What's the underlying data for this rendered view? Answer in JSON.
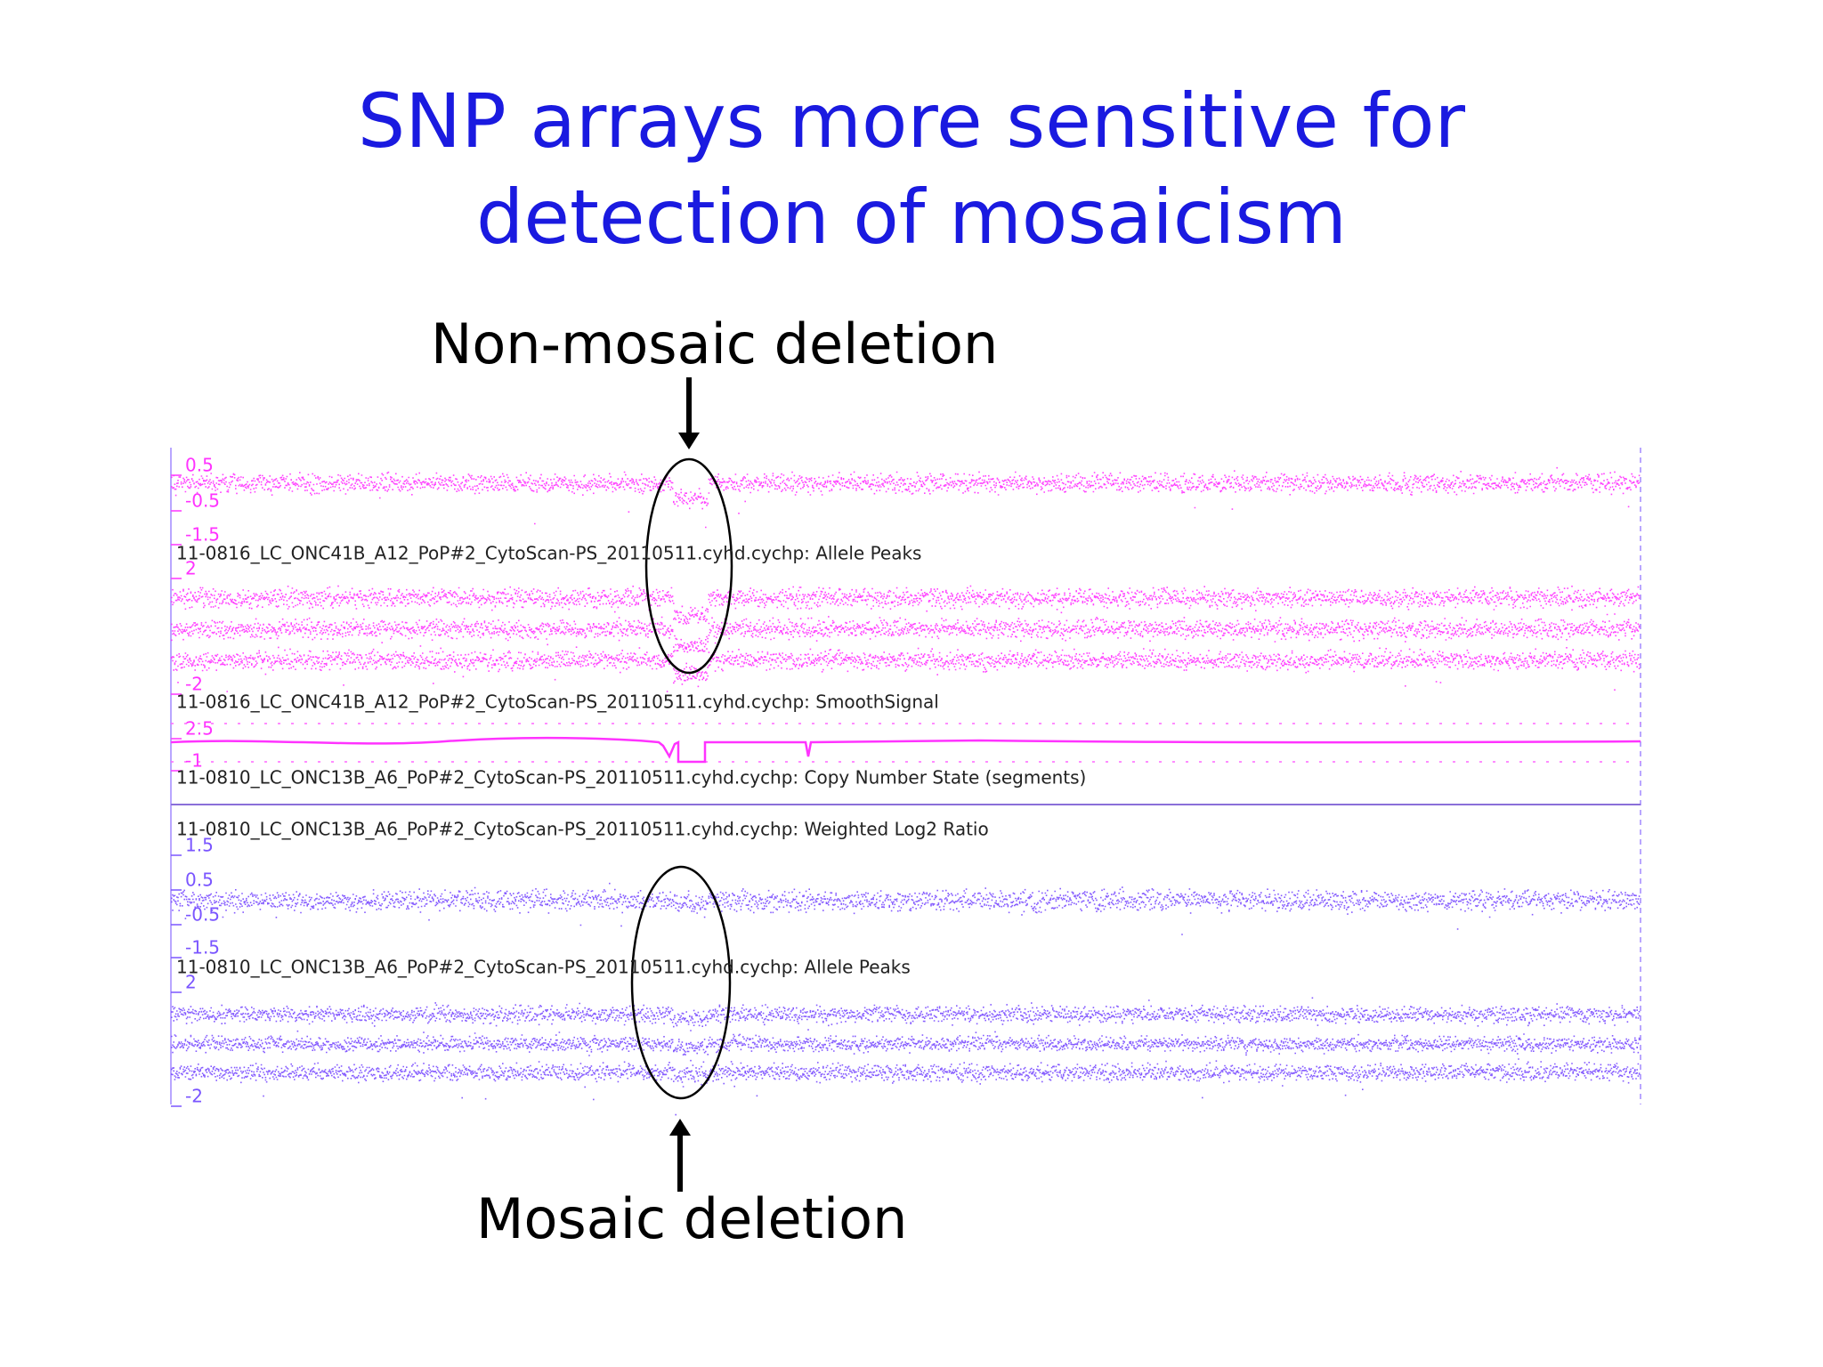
{
  "title": "SNP arrays more sensitive for detection of mosaicism",
  "annotations": {
    "top": "Non-mosaic deletion",
    "bottom": "Mosaic deletion"
  },
  "panel": {
    "tick_labels": [
      "0.5",
      "-0.5",
      "-1.5",
      "2",
      "-2",
      "2.5",
      "-1",
      "1.5",
      "0.5",
      "-0.5",
      "-1.5",
      "2",
      "-2"
    ],
    "track_labels": [
      "11-0816_LC_ONC41B_A12_PoP#2_CytoScan-PS_20110511.cyhd.cychp: Allele Peaks",
      "11-0816_LC_ONC41B_A12_PoP#2_CytoScan-PS_20110511.cyhd.cychp: SmoothSignal",
      "11-0810_LC_ONC13B_A6_PoP#2_CytoScan-PS_20110511.cyhd.cychp: Copy Number State (segments)",
      "11-0810_LC_ONC13B_A6_PoP#2_CytoScan-PS_20110511.cyhd.cychp: Weighted Log2 Ratio",
      "11-0810_LC_ONC13B_A6_PoP#2_CytoScan-PS_20110511.cyhd.cychp: Allele Peaks"
    ]
  }
}
